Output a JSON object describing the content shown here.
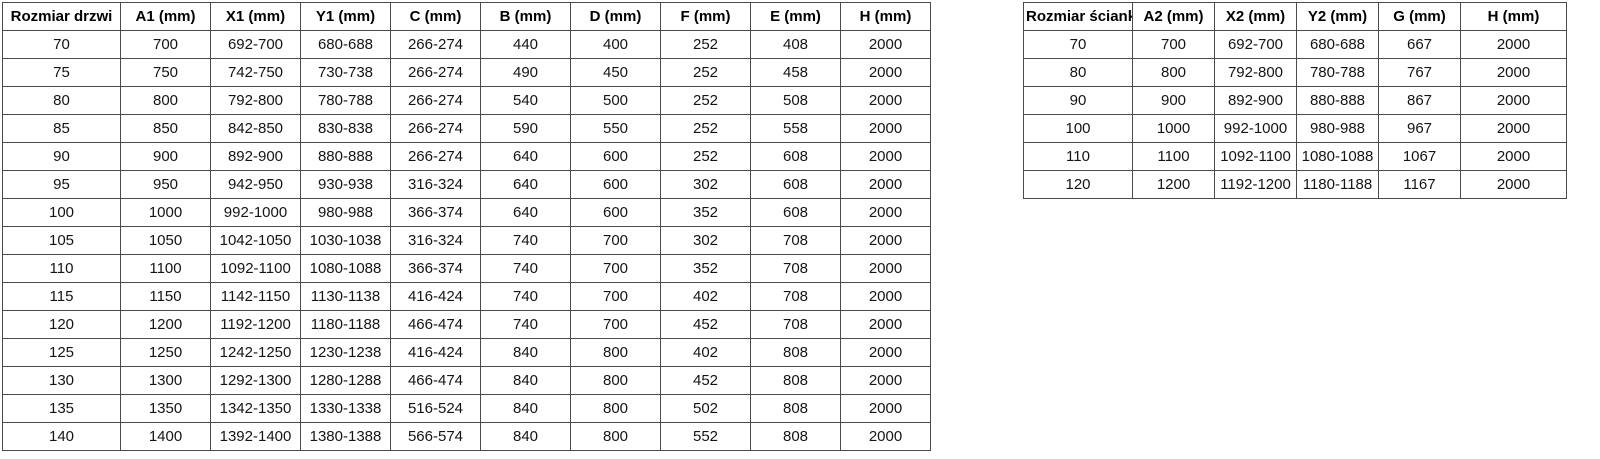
{
  "page": {
    "background_color": "#ffffff",
    "border_color": "#4a4a4a",
    "text_color": "#141414"
  },
  "tables": [
    {
      "id": "door-dimensions",
      "headers": [
        "Rozmiar drzwi",
        "A1 (mm)",
        "X1 (mm)",
        "Y1 (mm)",
        "C (mm)",
        "B (mm)",
        "D (mm)",
        "F (mm)",
        "E (mm)",
        "H (mm)"
      ],
      "rows": [
        [
          "70",
          "700",
          "692-700",
          "680-688",
          "266-274",
          "440",
          "400",
          "252",
          "408",
          "2000"
        ],
        [
          "75",
          "750",
          "742-750",
          "730-738",
          "266-274",
          "490",
          "450",
          "252",
          "458",
          "2000"
        ],
        [
          "80",
          "800",
          "792-800",
          "780-788",
          "266-274",
          "540",
          "500",
          "252",
          "508",
          "2000"
        ],
        [
          "85",
          "850",
          "842-850",
          "830-838",
          "266-274",
          "590",
          "550",
          "252",
          "558",
          "2000"
        ],
        [
          "90",
          "900",
          "892-900",
          "880-888",
          "266-274",
          "640",
          "600",
          "252",
          "608",
          "2000"
        ],
        [
          "95",
          "950",
          "942-950",
          "930-938",
          "316-324",
          "640",
          "600",
          "302",
          "608",
          "2000"
        ],
        [
          "100",
          "1000",
          "992-1000",
          "980-988",
          "366-374",
          "640",
          "600",
          "352",
          "608",
          "2000"
        ],
        [
          "105",
          "1050",
          "1042-1050",
          "1030-1038",
          "316-324",
          "740",
          "700",
          "302",
          "708",
          "2000"
        ],
        [
          "110",
          "1100",
          "1092-1100",
          "1080-1088",
          "366-374",
          "740",
          "700",
          "352",
          "708",
          "2000"
        ],
        [
          "115",
          "1150",
          "1142-1150",
          "1130-1138",
          "416-424",
          "740",
          "700",
          "402",
          "708",
          "2000"
        ],
        [
          "120",
          "1200",
          "1192-1200",
          "1180-1188",
          "466-474",
          "740",
          "700",
          "452",
          "708",
          "2000"
        ],
        [
          "125",
          "1250",
          "1242-1250",
          "1230-1238",
          "416-424",
          "840",
          "800",
          "402",
          "808",
          "2000"
        ],
        [
          "130",
          "1300",
          "1292-1300",
          "1280-1288",
          "466-474",
          "840",
          "800",
          "452",
          "808",
          "2000"
        ],
        [
          "135",
          "1350",
          "1342-1350",
          "1330-1338",
          "516-524",
          "840",
          "800",
          "502",
          "808",
          "2000"
        ],
        [
          "140",
          "1400",
          "1392-1400",
          "1380-1388",
          "566-574",
          "840",
          "800",
          "552",
          "808",
          "2000"
        ]
      ]
    },
    {
      "id": "wall-dimensions",
      "headers": [
        "Rozmiar ścianki",
        "A2 (mm)",
        "X2 (mm)",
        "Y2 (mm)",
        "G (mm)",
        "H (mm)"
      ],
      "rows": [
        [
          "70",
          "700",
          "692-700",
          "680-688",
          "667",
          "2000"
        ],
        [
          "80",
          "800",
          "792-800",
          "780-788",
          "767",
          "2000"
        ],
        [
          "90",
          "900",
          "892-900",
          "880-888",
          "867",
          "2000"
        ],
        [
          "100",
          "1000",
          "992-1000",
          "980-988",
          "967",
          "2000"
        ],
        [
          "110",
          "1100",
          "1092-1100",
          "1080-1088",
          "1067",
          "2000"
        ],
        [
          "120",
          "1200",
          "1192-1200",
          "1180-1188",
          "1167",
          "2000"
        ]
      ]
    }
  ]
}
